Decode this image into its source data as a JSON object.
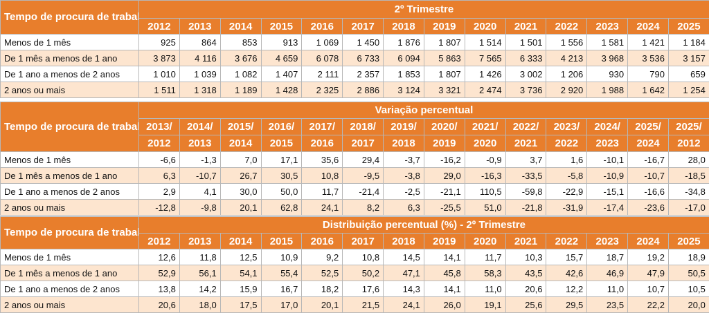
{
  "colors": {
    "header_bg": "#e87e2c",
    "header_text": "#ffffff",
    "row_alt_bg": "#fde5cf",
    "row_bg": "#ffffff"
  },
  "table1": {
    "rowhead": "Tempo de procura de trabalho",
    "title": "2º Trimestre",
    "years": [
      "2012",
      "2013",
      "2014",
      "2015",
      "2016",
      "2017",
      "2018",
      "2019",
      "2020",
      "2021",
      "2022",
      "2023",
      "2024",
      "2025"
    ],
    "rows": [
      {
        "label": "Menos de 1 mês",
        "values": [
          "925",
          "864",
          "853",
          "913",
          "1 069",
          "1 450",
          "1 876",
          "1 807",
          "1 514",
          "1 501",
          "1 556",
          "1 581",
          "1 421",
          "1 184"
        ]
      },
      {
        "label": "De 1 mês a menos de 1 ano",
        "values": [
          "3 873",
          "4 116",
          "3 676",
          "4 659",
          "6 078",
          "6 733",
          "6 094",
          "5 863",
          "7 565",
          "6 333",
          "4 213",
          "3 968",
          "3 536",
          "3 157"
        ]
      },
      {
        "label": "De 1 ano a menos de 2 anos",
        "values": [
          "1 010",
          "1 039",
          "1 082",
          "1 407",
          "2 111",
          "2 357",
          "1 853",
          "1 807",
          "1 426",
          "3 002",
          "1 206",
          "930",
          "790",
          "659"
        ]
      },
      {
        "label": "2 anos ou mais",
        "values": [
          "1 511",
          "1 318",
          "1 189",
          "1 428",
          "2 325",
          "2 886",
          "3 124",
          "3 321",
          "2 474",
          "3 736",
          "2 920",
          "1 988",
          "1 642",
          "1 254"
        ]
      }
    ]
  },
  "table2": {
    "rowhead": "Tempo de procura de trabalho",
    "title": "Variação percentual",
    "periods_top": [
      "2013/",
      "2014/",
      "2015/",
      "2016/",
      "2017/",
      "2018/",
      "2019/",
      "2020/",
      "2021/",
      "2022/",
      "2023/",
      "2024/",
      "2025/",
      "2025/"
    ],
    "periods_bottom": [
      "2012",
      "2013",
      "2014",
      "2015",
      "2016",
      "2017",
      "2018",
      "2019",
      "2020",
      "2021",
      "2022",
      "2023",
      "2024",
      "2012"
    ],
    "rows": [
      {
        "label": "Menos de 1 mês",
        "values": [
          "-6,6",
          "-1,3",
          "7,0",
          "17,1",
          "35,6",
          "29,4",
          "-3,7",
          "-16,2",
          "-0,9",
          "3,7",
          "1,6",
          "-10,1",
          "-16,7",
          "28,0"
        ]
      },
      {
        "label": "De 1 mês a menos de 1 ano",
        "values": [
          "6,3",
          "-10,7",
          "26,7",
          "30,5",
          "10,8",
          "-9,5",
          "-3,8",
          "29,0",
          "-16,3",
          "-33,5",
          "-5,8",
          "-10,9",
          "-10,7",
          "-18,5"
        ]
      },
      {
        "label": "De 1 ano a menos de 2 anos",
        "values": [
          "2,9",
          "4,1",
          "30,0",
          "50,0",
          "11,7",
          "-21,4",
          "-2,5",
          "-21,1",
          "110,5",
          "-59,8",
          "-22,9",
          "-15,1",
          "-16,6",
          "-34,8"
        ]
      },
      {
        "label": "2 anos ou mais",
        "values": [
          "-12,8",
          "-9,8",
          "20,1",
          "62,8",
          "24,1",
          "8,2",
          "6,3",
          "-25,5",
          "51,0",
          "-21,8",
          "-31,9",
          "-17,4",
          "-23,6",
          "-17,0"
        ]
      }
    ]
  },
  "table3": {
    "rowhead": "Tempo de procura de trabalho",
    "title": "Distribuição percentual  (%) - 2º Trimestre",
    "years": [
      "2012",
      "2013",
      "2014",
      "2015",
      "2016",
      "2017",
      "2018",
      "2019",
      "2020",
      "2021",
      "2022",
      "2023",
      "2024",
      "2025"
    ],
    "rows": [
      {
        "label": "Menos de 1 mês",
        "values": [
          "12,6",
          "11,8",
          "12,5",
          "10,9",
          "9,2",
          "10,8",
          "14,5",
          "14,1",
          "11,7",
          "10,3",
          "15,7",
          "18,7",
          "19,2",
          "18,9"
        ]
      },
      {
        "label": "De 1 mês a menos de 1 ano",
        "values": [
          "52,9",
          "56,1",
          "54,1",
          "55,4",
          "52,5",
          "50,2",
          "47,1",
          "45,8",
          "58,3",
          "43,5",
          "42,6",
          "46,9",
          "47,9",
          "50,5"
        ]
      },
      {
        "label": "De 1 ano a menos de 2 anos",
        "values": [
          "13,8",
          "14,2",
          "15,9",
          "16,7",
          "18,2",
          "17,6",
          "14,3",
          "14,1",
          "11,0",
          "20,6",
          "12,2",
          "11,0",
          "10,7",
          "10,5"
        ]
      },
      {
        "label": "2 anos ou mais",
        "values": [
          "20,6",
          "18,0",
          "17,5",
          "17,0",
          "20,1",
          "21,5",
          "24,1",
          "26,0",
          "19,1",
          "25,6",
          "29,5",
          "23,5",
          "22,2",
          "20,0"
        ]
      }
    ]
  }
}
